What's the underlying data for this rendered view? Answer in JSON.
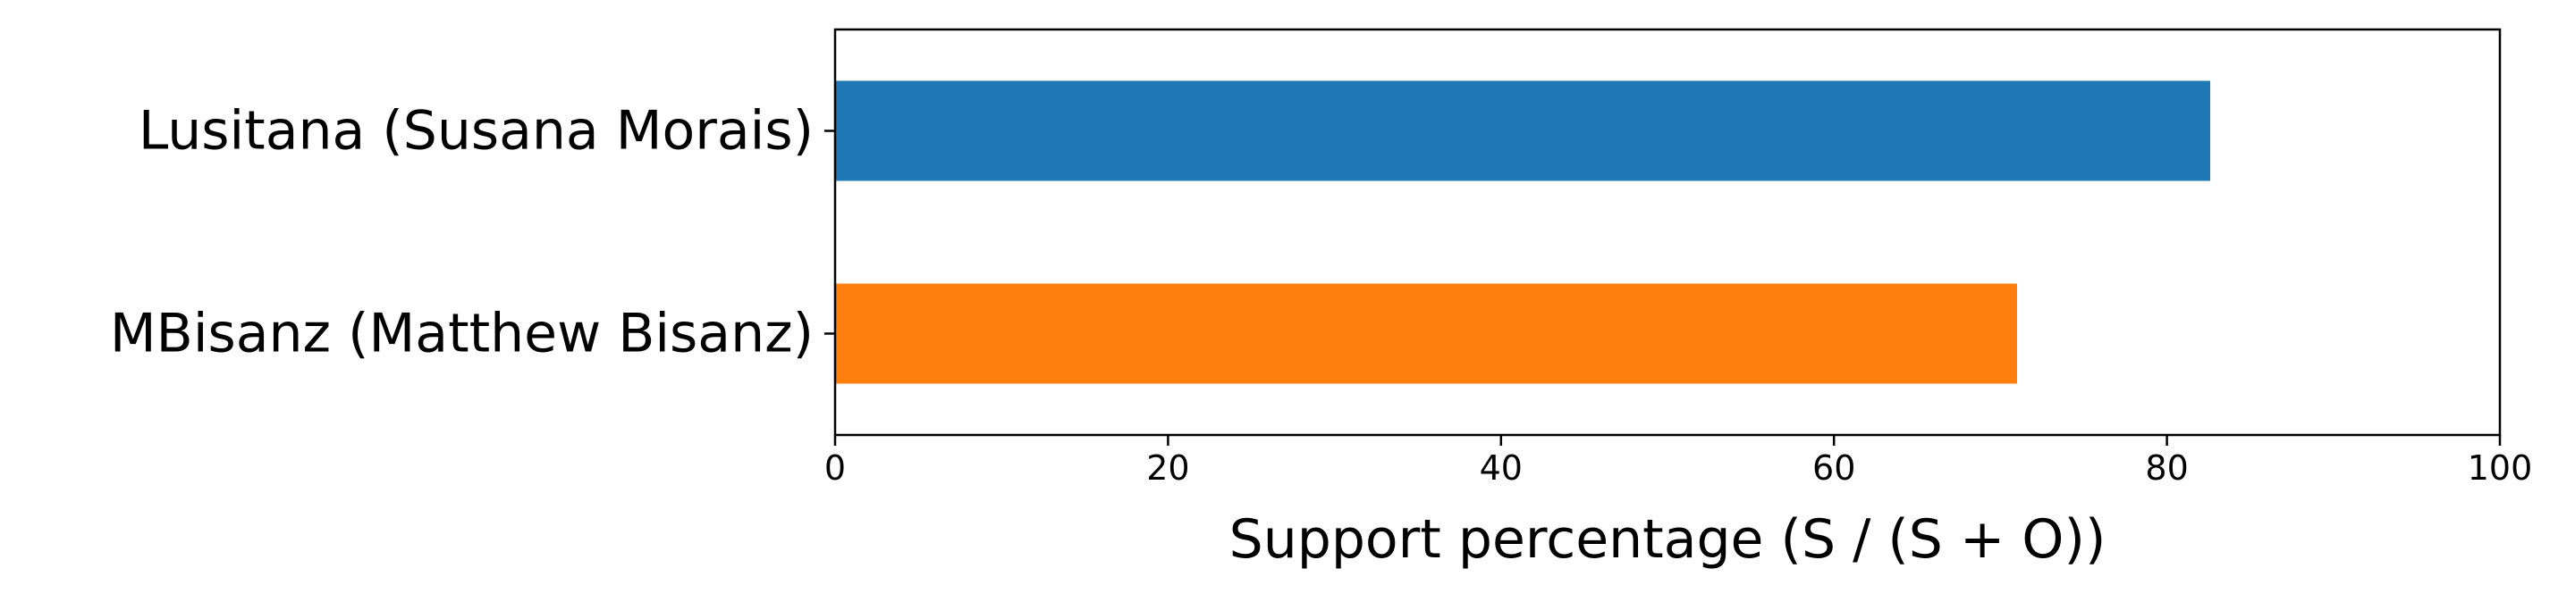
{
  "chart_data": {
    "type": "bar",
    "orientation": "horizontal",
    "categories": [
      "Lusitana (Susana Morais)",
      "MBisanz (Matthew Bisanz)"
    ],
    "values": [
      82.6,
      71.0
    ],
    "colors": [
      "#1f77b4",
      "#ff7f0e"
    ],
    "xlabel": "Support percentage (S / (S + O))",
    "ylabel": "",
    "title": "",
    "xlim": [
      0,
      100
    ],
    "xticks": [
      0,
      20,
      40,
      60,
      80,
      100
    ],
    "grid": false,
    "legend": "none"
  }
}
